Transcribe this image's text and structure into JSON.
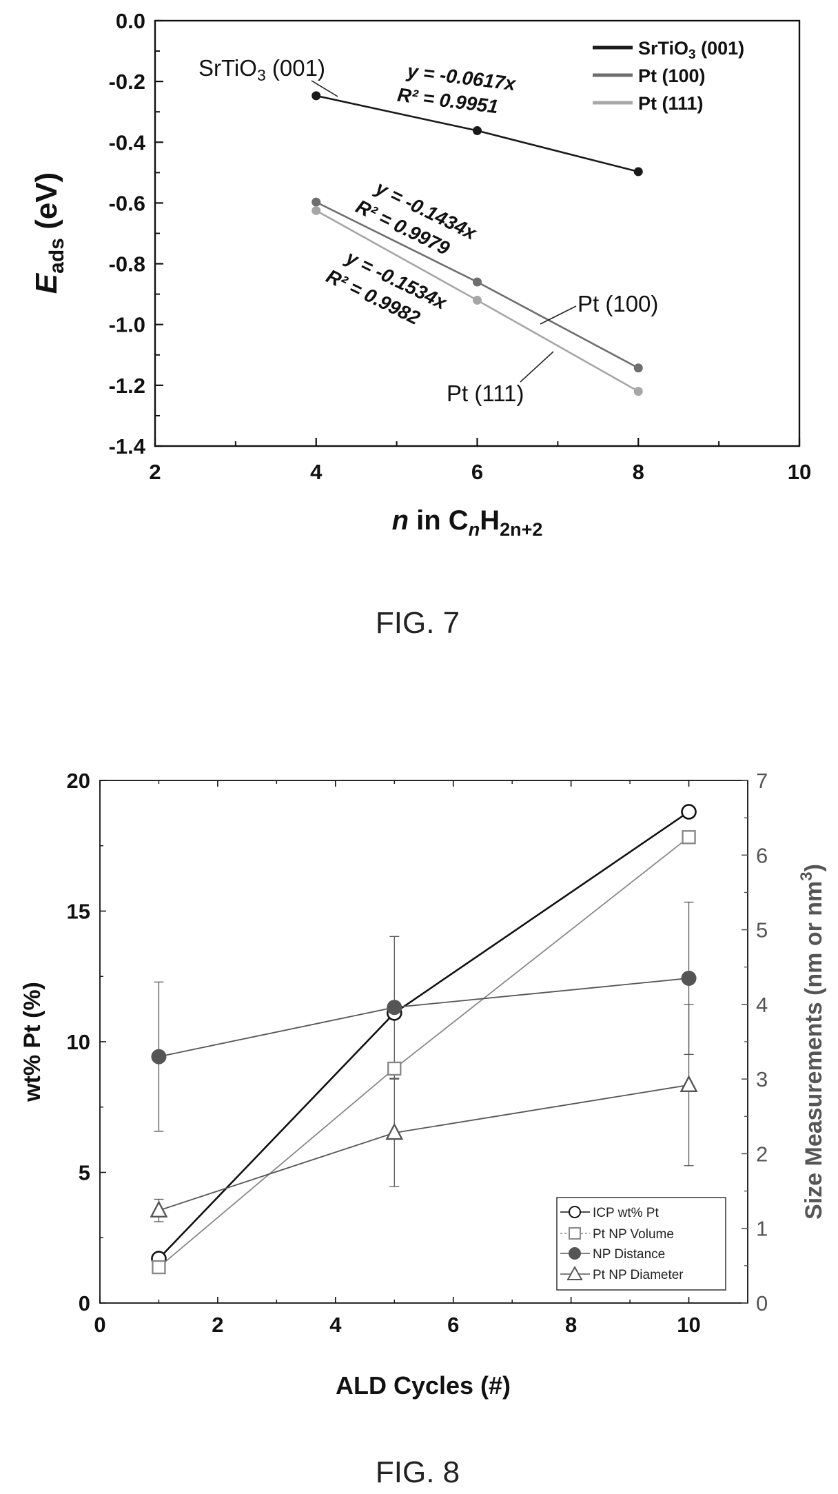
{
  "chart_data": [
    {
      "figure_label": "FIG. 7",
      "type": "line",
      "title": "",
      "xlabel": {
        "n": "n",
        "in": " in C",
        "sub1": "n",
        "h": "H",
        "sub2": "2n+2"
      },
      "ylabel": {
        "e": "E",
        "sub": "ads",
        "unit": " (eV)"
      },
      "xlim": [
        2,
        10
      ],
      "ylim": [
        -1.4,
        0.0
      ],
      "x_ticks": [
        "2",
        "4",
        "6",
        "8",
        "10"
      ],
      "y_ticks": [
        "0.0",
        "-0.2",
        "-0.4",
        "-0.6",
        "-0.8",
        "-1.0",
        "-1.2",
        "-1.4"
      ],
      "legend_position": "top-right",
      "series": [
        {
          "name": "SrTiO3 (001)",
          "name_main": "SrTiO",
          "name_sub": "3",
          "name_tail": " (001)",
          "color": "#1a1a1a",
          "x": [
            4,
            6,
            8
          ],
          "y": [
            -0.247,
            -0.362,
            -0.497
          ],
          "label": "SrTiO3 (001)",
          "fit": "y = -0.0617x",
          "r2": "R² = 0.9951"
        },
        {
          "name": "Pt (100)",
          "color": "#6e6e6e",
          "x": [
            4,
            6,
            8
          ],
          "y": [
            -0.597,
            -0.86,
            -1.143
          ],
          "label": "Pt (100)",
          "fit": "y = -0.1434x",
          "r2": "R² = 0.9979"
        },
        {
          "name": "Pt (111)",
          "color": "#a6a6a6",
          "x": [
            4,
            6,
            8
          ],
          "y": [
            -0.625,
            -0.92,
            -1.22
          ],
          "label": "Pt (111)",
          "fit": "y = -0.1534x",
          "r2": "R² = 0.9982"
        }
      ]
    },
    {
      "figure_label": "FIG. 8",
      "type": "line",
      "title": "",
      "xlabel": "ALD Cycles (#)",
      "ylabel_left": "wt% Pt (%)",
      "ylabel_right": {
        "main": "Size Measurements (nm or nm",
        "sup": "3",
        "close": ")"
      },
      "xlim": [
        0,
        11
      ],
      "ylim_left": [
        0,
        20
      ],
      "ylim_right": [
        0,
        7
      ],
      "x_ticks": [
        "0",
        "2",
        "4",
        "6",
        "8",
        "10"
      ],
      "y_ticks_left": [
        "0",
        "5",
        "10",
        "15",
        "20"
      ],
      "y_ticks_right": [
        "0",
        "1",
        "2",
        "3",
        "4",
        "5",
        "6",
        "7"
      ],
      "legend_position": "bottom-right",
      "series": [
        {
          "name": "ICP wt% Pt",
          "axis": "left",
          "marker": "open-circle",
          "color": "#111111",
          "x": [
            1,
            5,
            10
          ],
          "y": [
            1.7,
            11.1,
            18.8
          ]
        },
        {
          "name": "Pt NP Volume",
          "axis": "right",
          "marker": "open-square",
          "color": "#888888",
          "x": [
            1,
            5,
            10
          ],
          "y": [
            0.48,
            3.14,
            6.24
          ]
        },
        {
          "name": "NP Distance",
          "axis": "right",
          "marker": "filled-circle",
          "color": "#555555",
          "x": [
            1,
            5,
            10
          ],
          "y": [
            3.3,
            3.96,
            4.35
          ],
          "error": [
            1.0,
            0.95,
            1.02
          ]
        },
        {
          "name": "Pt NP Diameter",
          "axis": "right",
          "marker": "open-triangle",
          "color": "#555555",
          "x": [
            1,
            5,
            10
          ],
          "y": [
            1.24,
            2.28,
            2.92
          ],
          "error": [
            0.15,
            0.72,
            1.08
          ]
        }
      ]
    }
  ]
}
